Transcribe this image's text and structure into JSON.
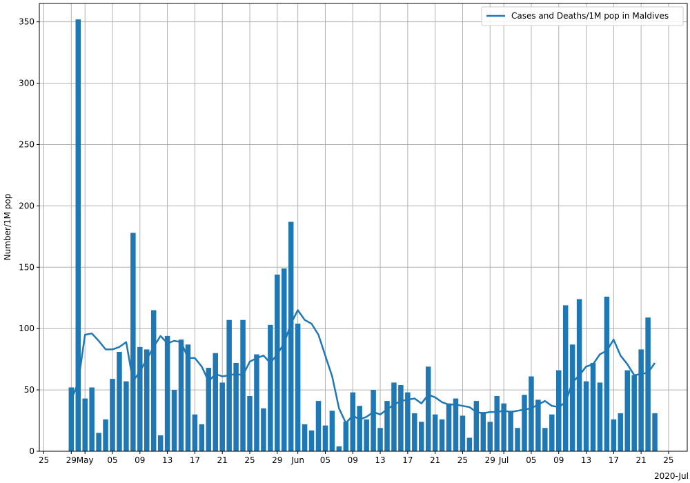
{
  "chart_data": {
    "type": "bar",
    "title": "",
    "xlabel": "",
    "ylabel": "Number/1M pop",
    "ylim": [
      0,
      365
    ],
    "grid": true,
    "legend_placement": "top-right",
    "x_start_date": "2020-04-28",
    "x_year_label": "2020-Jul",
    "y_ticks": [
      0,
      50,
      100,
      150,
      200,
      250,
      300,
      350
    ],
    "x_ticks": [
      {
        "date": "2020-04-25",
        "label": "25"
      },
      {
        "date": "2020-04-29",
        "label": "29"
      },
      {
        "date": "2020-05-01",
        "label": "May"
      },
      {
        "date": "2020-05-05",
        "label": "05"
      },
      {
        "date": "2020-05-09",
        "label": "09"
      },
      {
        "date": "2020-05-13",
        "label": "13"
      },
      {
        "date": "2020-05-17",
        "label": "17"
      },
      {
        "date": "2020-05-21",
        "label": "21"
      },
      {
        "date": "2020-05-25",
        "label": "25"
      },
      {
        "date": "2020-05-29",
        "label": "29"
      },
      {
        "date": "2020-06-01",
        "label": "Jun"
      },
      {
        "date": "2020-06-05",
        "label": "05"
      },
      {
        "date": "2020-06-09",
        "label": "09"
      },
      {
        "date": "2020-06-13",
        "label": "13"
      },
      {
        "date": "2020-06-17",
        "label": "17"
      },
      {
        "date": "2020-06-21",
        "label": "21"
      },
      {
        "date": "2020-06-25",
        "label": "25"
      },
      {
        "date": "2020-06-29",
        "label": "29"
      },
      {
        "date": "2020-07-01",
        "label": "Jul"
      },
      {
        "date": "2020-07-05",
        "label": "05"
      },
      {
        "date": "2020-07-09",
        "label": "09"
      },
      {
        "date": "2020-07-13",
        "label": "13"
      },
      {
        "date": "2020-07-17",
        "label": "17"
      },
      {
        "date": "2020-07-21",
        "label": "21"
      },
      {
        "date": "2020-07-25",
        "label": "25"
      }
    ],
    "colors": {
      "cases": "#1f77b4",
      "deaths": "#ff7f0e",
      "grid": "#b0b0b0"
    },
    "series": [
      {
        "name": "Cases and Deaths/1M pop in Maldives",
        "kind": "line",
        "color": "#1f77b4",
        "values": [
          42,
          56,
          95,
          96,
          90,
          83,
          83,
          85,
          89,
          57,
          65,
          75,
          85,
          94,
          88,
          90,
          89,
          76,
          76,
          69,
          57,
          63,
          61,
          62,
          63,
          62,
          73,
          76,
          78,
          72,
          79,
          88,
          104,
          115,
          107,
          104,
          95,
          78,
          61,
          35,
          23,
          29,
          26,
          28,
          32,
          30,
          34,
          38,
          41,
          42,
          43,
          39,
          46,
          44,
          40,
          38,
          38,
          37,
          36,
          32,
          31,
          32,
          32,
          33,
          32,
          33,
          34,
          35,
          38,
          41,
          37,
          36,
          40,
          56,
          62,
          69,
          71,
          79,
          82,
          91,
          78,
          71,
          62,
          63,
          64,
          72
        ]
      },
      {
        "name": "cases",
        "kind": "bar",
        "color": "#1f77b4",
        "values": [
          52,
          352,
          43,
          52,
          15,
          26,
          59,
          81,
          57,
          178,
          85,
          83,
          115,
          13,
          94,
          50,
          91,
          87,
          30,
          22,
          68,
          80,
          56,
          107,
          72,
          107,
          45,
          79,
          35,
          103,
          144,
          149,
          187,
          104,
          22,
          17,
          41,
          21,
          33,
          4,
          24,
          48,
          37,
          26,
          50,
          19,
          41,
          56,
          54,
          48,
          31,
          24,
          69,
          30,
          26,
          39,
          43,
          29,
          11,
          41,
          32,
          24,
          45,
          39,
          33,
          19,
          46,
          61,
          42,
          19,
          30,
          66,
          119,
          87,
          124,
          57,
          72,
          56,
          126,
          26,
          31,
          66,
          62,
          83,
          109,
          31
        ]
      },
      {
        "name": "deaths",
        "kind": "bar",
        "color": "#ff7f0e",
        "values": [
          0,
          0,
          0,
          0,
          0,
          0,
          0,
          0,
          0,
          0,
          0,
          0,
          0,
          0,
          0,
          0,
          0,
          0,
          0,
          0,
          0,
          0,
          0,
          0,
          0,
          0,
          0,
          0,
          0,
          0,
          0,
          0,
          0,
          0,
          0,
          0,
          0,
          0,
          0,
          0,
          0,
          0,
          0,
          0,
          0,
          0,
          0,
          0,
          0,
          0,
          0,
          0,
          0,
          0,
          0,
          0,
          0,
          0,
          0,
          0,
          0,
          0,
          0,
          0,
          0,
          0,
          0,
          0,
          0,
          0,
          0,
          0,
          0,
          0,
          0,
          0,
          0,
          0,
          0,
          0,
          0,
          0,
          0,
          0,
          0,
          0
        ]
      }
    ]
  }
}
